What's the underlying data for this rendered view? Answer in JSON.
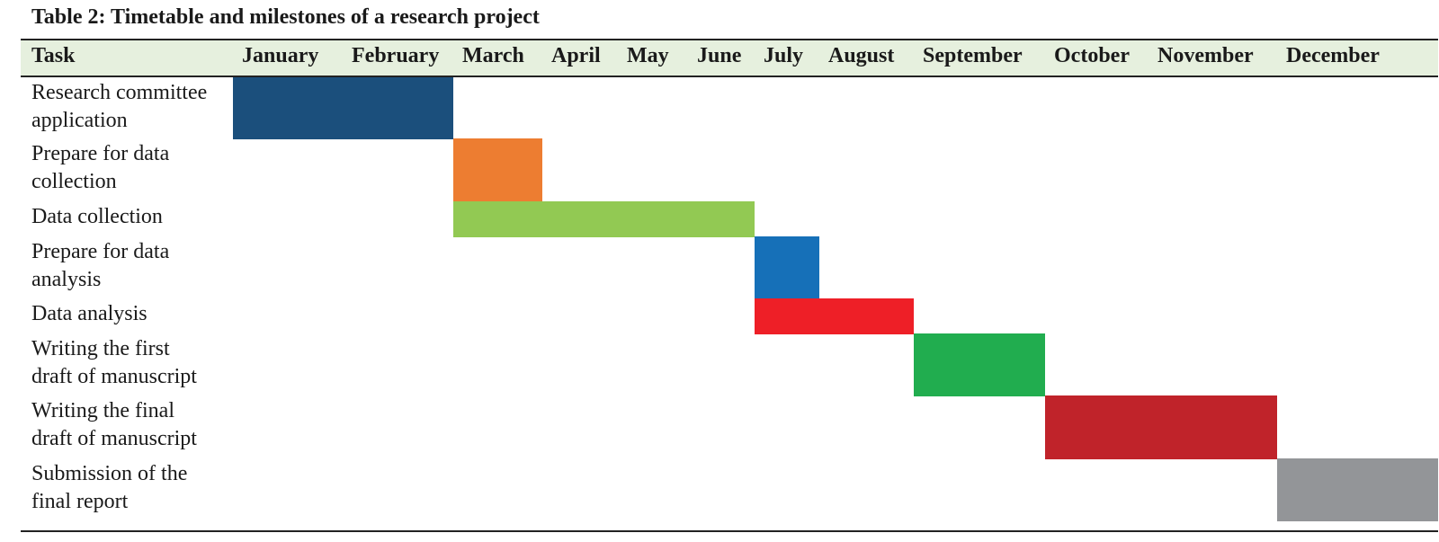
{
  "caption": "Table 2: Timetable and milestones of a research project",
  "chart_data": {
    "type": "gantt",
    "title": "Table 2: Timetable and milestones of a research project",
    "task_header": "Task",
    "months": [
      "January",
      "February",
      "March",
      "April",
      "May",
      "June",
      "July",
      "August",
      "September",
      "October",
      "November",
      "December"
    ],
    "tasks": [
      {
        "label": "Research committee\napplication",
        "start": "January",
        "end": "February",
        "color": "#1b4f7c"
      },
      {
        "label": "Prepare for data\ncollection",
        "start": "March",
        "end": "March",
        "color": "#ed7d31"
      },
      {
        "label": "Data collection",
        "start": "March",
        "end": "June",
        "color": "#92c953"
      },
      {
        "label": "Prepare for data\nanalysis",
        "start": "July",
        "end": "July",
        "color": "#1670b8"
      },
      {
        "label": "Data analysis",
        "start": "July",
        "end": "August",
        "color": "#ee1f27"
      },
      {
        "label": "Writing the first\ndraft of manuscript",
        "start": "September",
        "end": "September",
        "color": "#21ad4f"
      },
      {
        "label": "Writing the final\ndraft of manuscript",
        "start": "October",
        "end": "November",
        "color": "#c0232a"
      },
      {
        "label": "Submission of the\nfinal report",
        "start": "December",
        "end": "December",
        "color": "#939598"
      }
    ],
    "header_background": "#e6f0de",
    "grid": false
  }
}
